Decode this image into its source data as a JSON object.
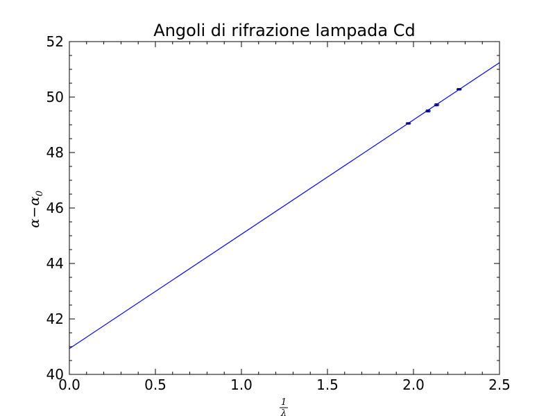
{
  "chart_data": {
    "type": "line",
    "title": "Angoli di rifrazione lampada Cd",
    "xlabel": {
      "numerator": "1",
      "denominator": "λ"
    },
    "ylabel": {
      "base": "α",
      "minus": "−",
      "base2": "α",
      "subscript": "0"
    },
    "xlim": [
      0.0,
      2.5
    ],
    "ylim": [
      40,
      52
    ],
    "x_ticks": [
      "0.0",
      "0.5",
      "1.0",
      "1.5",
      "2.0",
      "2.5"
    ],
    "x_tick_values": [
      0.0,
      0.5,
      1.0,
      1.5,
      2.0,
      2.5
    ],
    "y_ticks": [
      "40",
      "42",
      "44",
      "46",
      "48",
      "50",
      "52"
    ],
    "y_tick_values": [
      40,
      42,
      44,
      46,
      48,
      50,
      52
    ],
    "grid": false,
    "fit_line": {
      "x": [
        0.0,
        2.5
      ],
      "y": [
        40.93,
        51.24
      ],
      "color": "#0000ff"
    },
    "points": [
      {
        "x": 1.97,
        "y": 49.05,
        "yerr": 0.03,
        "xerr": 0.015
      },
      {
        "x": 2.085,
        "y": 49.5,
        "yerr": 0.04,
        "xerr": 0.015
      },
      {
        "x": 2.135,
        "y": 49.72,
        "yerr": 0.04,
        "xerr": 0.015
      },
      {
        "x": 2.265,
        "y": 50.28,
        "yerr": 0.03,
        "xerr": 0.015
      }
    ],
    "point_color": "#000080"
  }
}
